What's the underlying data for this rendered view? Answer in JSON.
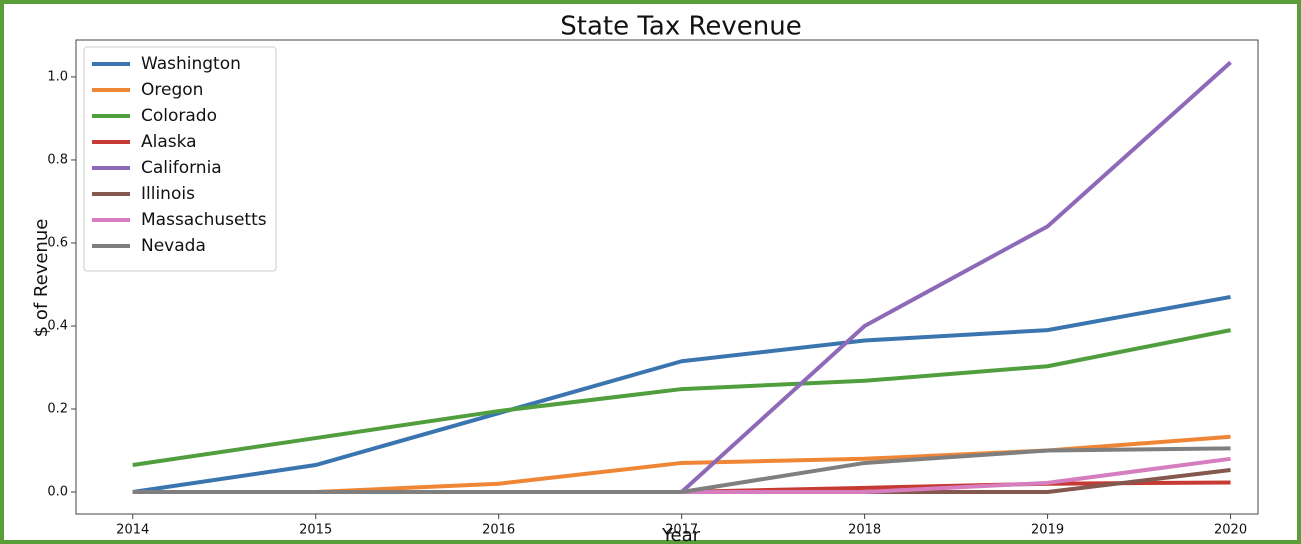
{
  "chart_data": {
    "type": "line",
    "title": "State Tax Revenue",
    "x_label": "Year",
    "y_label": "$ of Revenue",
    "x": [
      2014,
      2015,
      2016,
      2017,
      2018,
      2019,
      2020
    ],
    "xlim": [
      2013.69,
      2020.15
    ],
    "xticks": [
      2014,
      2015,
      2016,
      2017,
      2018,
      2019,
      2020
    ],
    "ylim": [
      -0.053,
      1.089
    ],
    "yticks": [
      {
        "value": 0,
        "label": "0.0"
      },
      0.2,
      0.4,
      0.6,
      0.8,
      {
        "value": 1,
        "label": "1.0"
      }
    ],
    "legend": "upper left",
    "series": [
      {
        "name": "Washington",
        "color": "#3b75af",
        "values": [
          0,
          0.065,
          0.19,
          0.315,
          0.365,
          0.39,
          0.47
        ]
      },
      {
        "name": "Oregon",
        "color": "#ef8636",
        "values": [
          0,
          0,
          0.02,
          0.07,
          0.08,
          0.1,
          0.133
        ]
      },
      {
        "name": "Colorado",
        "color": "#519e3e",
        "values": [
          0.065,
          0.13,
          0.195,
          0.248,
          0.268,
          0.303,
          0.39
        ]
      },
      {
        "name": "Alaska",
        "color": "#c53a32",
        "values": [
          0,
          0,
          0,
          0,
          0.01,
          0.02,
          0.023
        ]
      },
      {
        "name": "California",
        "color": "#8d69b8",
        "values": [
          0,
          0,
          0,
          0,
          0.4,
          0.64,
          1.035
        ]
      },
      {
        "name": "Illinois",
        "color": "#84584e",
        "values": [
          0,
          0,
          0,
          0,
          0,
          0,
          0.053
        ]
      },
      {
        "name": "Massachusetts",
        "color": "#d57dbe",
        "values": [
          0,
          0,
          0,
          0,
          0,
          0.022,
          0.08
        ]
      },
      {
        "name": "Nevada",
        "color": "#7f7f7f",
        "values": [
          0,
          0,
          0,
          0,
          0.07,
          0.1,
          0.105
        ]
      }
    ]
  }
}
